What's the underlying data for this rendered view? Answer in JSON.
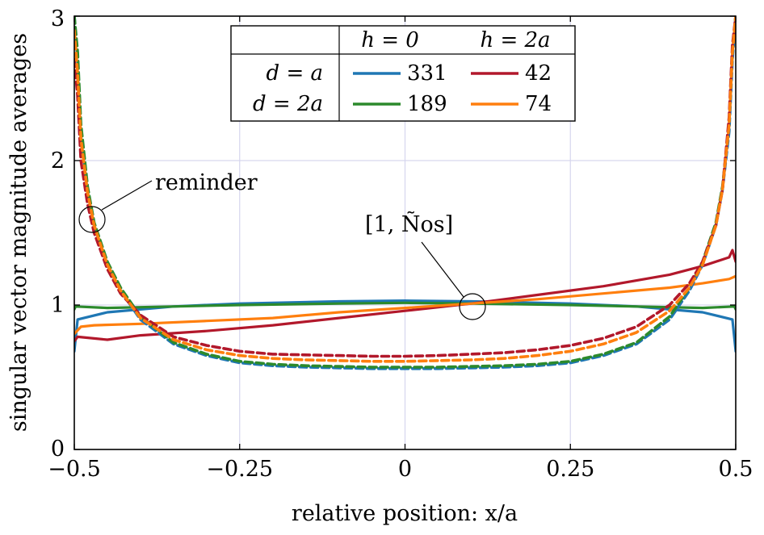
{
  "chart_data": {
    "type": "line",
    "title": "",
    "xlabel": "relative position: x/a",
    "ylabel": "singular vector magnitude averages",
    "xlim": [
      -0.5,
      0.5
    ],
    "ylim": [
      0,
      3
    ],
    "xticks": [
      -0.5,
      -0.25,
      0,
      0.25,
      0.5
    ],
    "xtick_labels": [
      "−0.5",
      "−0.25",
      "0",
      "0.25",
      "0.5"
    ],
    "yticks": [
      0,
      1,
      2,
      3
    ],
    "ytick_labels": [
      "0",
      "1",
      "2",
      "3"
    ],
    "grid": true,
    "legend": {
      "placement": "top-center",
      "header": [
        "h = 0",
        "h = 2a"
      ],
      "rows": [
        {
          "label": "d = a",
          "entries": [
            {
              "value": "331",
              "color": "#1f77b4"
            },
            {
              "value": "42",
              "color": "#b2182b"
            }
          ]
        },
        {
          "label": "d = 2a",
          "entries": [
            {
              "value": "189",
              "color": "#2c8a2c"
            },
            {
              "value": "74",
              "color": "#ff7f0e"
            }
          ]
        }
      ]
    },
    "annotations": [
      {
        "text": "reminder",
        "x": -0.477,
        "y": 1.6
      },
      {
        "text": "[1, Ños]",
        "x": 0.1,
        "y": 1.0
      }
    ],
    "colors": {
      "blue": "#1f77b4",
      "red": "#b2182b",
      "green": "#2c8a2c",
      "orange": "#ff7f0e",
      "grid": "#d6d6ee"
    },
    "series": [
      {
        "color": "#1f77b4",
        "style": "solid",
        "x": [
          -0.5,
          -0.495,
          -0.45,
          -0.35,
          -0.25,
          -0.1,
          0.0,
          0.1,
          0.25,
          0.35,
          0.45,
          0.495,
          0.5
        ],
        "y": [
          0.68,
          0.9,
          0.95,
          0.99,
          1.01,
          1.025,
          1.03,
          1.025,
          1.01,
          0.99,
          0.95,
          0.9,
          0.68
        ]
      },
      {
        "color": "#2c8a2c",
        "style": "solid",
        "x": [
          -0.5,
          -0.498,
          -0.45,
          -0.35,
          -0.25,
          -0.1,
          0.0,
          0.1,
          0.25,
          0.35,
          0.45,
          0.498,
          0.5
        ],
        "y": [
          0.97,
          0.99,
          0.98,
          0.99,
          1.0,
          1.01,
          1.015,
          1.01,
          1.0,
          0.99,
          0.98,
          0.99,
          0.97
        ]
      },
      {
        "color": "#b2182b",
        "style": "solid",
        "x": [
          -0.5,
          -0.495,
          -0.45,
          -0.4,
          -0.3,
          -0.2,
          -0.1,
          0.0,
          0.1,
          0.2,
          0.3,
          0.4,
          0.45,
          0.49,
          0.495,
          0.5
        ],
        "y": [
          0.75,
          0.78,
          0.76,
          0.79,
          0.82,
          0.86,
          0.91,
          0.96,
          1.01,
          1.07,
          1.13,
          1.21,
          1.27,
          1.33,
          1.38,
          1.3
        ]
      },
      {
        "color": "#ff7f0e",
        "style": "solid",
        "x": [
          -0.5,
          -0.49,
          -0.47,
          -0.4,
          -0.3,
          -0.2,
          -0.1,
          0.0,
          0.1,
          0.2,
          0.3,
          0.4,
          0.45,
          0.49,
          0.5
        ],
        "y": [
          0.8,
          0.85,
          0.86,
          0.87,
          0.89,
          0.91,
          0.95,
          0.98,
          1.01,
          1.04,
          1.08,
          1.12,
          1.15,
          1.18,
          1.2
        ]
      },
      {
        "color": "#1f77b4",
        "style": "dashed",
        "x": [
          -0.5,
          -0.495,
          -0.49,
          -0.48,
          -0.47,
          -0.45,
          -0.43,
          -0.4,
          -0.35,
          -0.3,
          -0.25,
          -0.2,
          -0.15,
          -0.1,
          -0.05,
          0.0,
          0.05,
          0.1,
          0.15,
          0.2,
          0.25,
          0.3,
          0.35,
          0.4,
          0.43,
          0.45,
          0.47,
          0.48,
          0.49,
          0.495,
          0.5
        ],
        "y": [
          3.0,
          2.7,
          2.2,
          1.8,
          1.55,
          1.28,
          1.1,
          0.9,
          0.73,
          0.65,
          0.6,
          0.58,
          0.57,
          0.565,
          0.56,
          0.56,
          0.56,
          0.565,
          0.57,
          0.58,
          0.6,
          0.65,
          0.73,
          0.9,
          1.1,
          1.28,
          1.55,
          1.8,
          2.2,
          2.7,
          3.0
        ]
      },
      {
        "color": "#2c8a2c",
        "style": "dashed",
        "x": [
          -0.5,
          -0.495,
          -0.49,
          -0.48,
          -0.47,
          -0.45,
          -0.43,
          -0.4,
          -0.35,
          -0.3,
          -0.25,
          -0.2,
          -0.15,
          -0.1,
          -0.05,
          0.0,
          0.05,
          0.1,
          0.15,
          0.2,
          0.25,
          0.3,
          0.35,
          0.4,
          0.43,
          0.45,
          0.47,
          0.48,
          0.49,
          0.495,
          0.5
        ],
        "y": [
          3.0,
          2.75,
          2.25,
          1.82,
          1.57,
          1.3,
          1.12,
          0.92,
          0.74,
          0.66,
          0.61,
          0.59,
          0.58,
          0.575,
          0.57,
          0.57,
          0.57,
          0.575,
          0.58,
          0.59,
          0.61,
          0.66,
          0.74,
          0.92,
          1.12,
          1.3,
          1.57,
          1.82,
          2.25,
          2.75,
          3.0
        ]
      },
      {
        "color": "#b2182b",
        "style": "dashed",
        "x": [
          -0.5,
          -0.495,
          -0.49,
          -0.48,
          -0.47,
          -0.45,
          -0.43,
          -0.4,
          -0.35,
          -0.3,
          -0.25,
          -0.2,
          -0.15,
          -0.1,
          -0.05,
          0.0,
          0.05,
          0.1,
          0.15,
          0.2,
          0.25,
          0.3,
          0.35,
          0.4,
          0.43,
          0.45,
          0.47,
          0.48,
          0.49,
          0.495,
          0.5
        ],
        "y": [
          2.7,
          2.45,
          2.0,
          1.7,
          1.5,
          1.25,
          1.08,
          0.93,
          0.78,
          0.72,
          0.68,
          0.66,
          0.655,
          0.65,
          0.645,
          0.645,
          0.65,
          0.66,
          0.67,
          0.69,
          0.72,
          0.77,
          0.85,
          1.0,
          1.15,
          1.3,
          1.55,
          1.8,
          2.3,
          2.8,
          3.0
        ]
      },
      {
        "color": "#ff7f0e",
        "style": "dashed",
        "x": [
          -0.5,
          -0.495,
          -0.49,
          -0.48,
          -0.47,
          -0.45,
          -0.43,
          -0.4,
          -0.35,
          -0.3,
          -0.25,
          -0.2,
          -0.15,
          -0.1,
          -0.05,
          0.0,
          0.05,
          0.1,
          0.15,
          0.2,
          0.25,
          0.3,
          0.35,
          0.4,
          0.43,
          0.45,
          0.47,
          0.48,
          0.49,
          0.495,
          0.5
        ],
        "y": [
          2.9,
          2.6,
          2.15,
          1.78,
          1.55,
          1.28,
          1.1,
          0.91,
          0.76,
          0.69,
          0.65,
          0.63,
          0.62,
          0.615,
          0.61,
          0.61,
          0.615,
          0.62,
          0.63,
          0.65,
          0.68,
          0.73,
          0.81,
          0.96,
          1.12,
          1.28,
          1.55,
          1.8,
          2.25,
          2.75,
          3.0
        ]
      }
    ]
  }
}
